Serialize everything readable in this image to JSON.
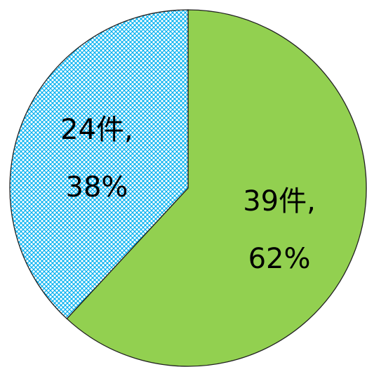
{
  "chart_data": {
    "type": "pie",
    "values": [
      39,
      24
    ],
    "value_labels": [
      "39件,",
      "24件,"
    ],
    "percents": [
      62,
      38
    ],
    "percent_labels": [
      "62%",
      "38%"
    ],
    "colors": [
      "#92d050",
      "#00b0f0"
    ],
    "hatch": [
      false,
      true
    ]
  }
}
